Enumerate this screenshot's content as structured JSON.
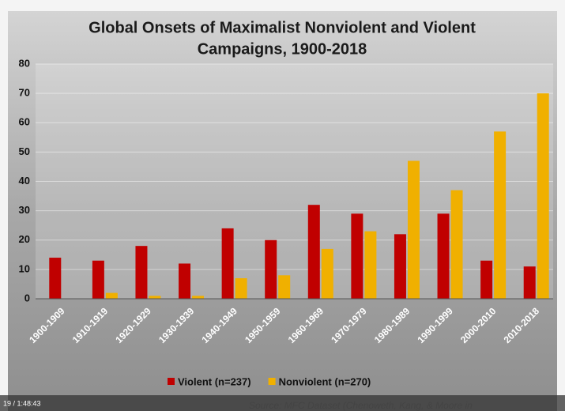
{
  "chart_data": {
    "type": "bar",
    "title": [
      "Global Onsets of Maximalist Nonviolent and Violent",
      "Campaigns, 1900-2018"
    ],
    "categories": [
      "1900-1909",
      "1910-1919",
      "1920-1929",
      "1930-1939",
      "1940-1949",
      "1950-1959",
      "1960-1969",
      "1970-1979",
      "1980-1989",
      "1990-1999",
      "2000-2010",
      "2010-2018"
    ],
    "series": [
      {
        "name": "Violent (n=237)",
        "color": "#c00000",
        "values": [
          14,
          13,
          18,
          12,
          24,
          20,
          32,
          29,
          22,
          29,
          13,
          11
        ]
      },
      {
        "name": "Nonviolent (n=270)",
        "color": "#f0b000",
        "values": [
          0,
          2,
          1,
          1,
          7,
          8,
          17,
          23,
          47,
          37,
          57,
          70
        ]
      }
    ],
    "ylim": [
      0,
      80
    ],
    "yticks": [
      0,
      10,
      20,
      30,
      40,
      50,
      60,
      70,
      80
    ],
    "grid": true,
    "source": "Source: MFC Dataset (Chenoweth, Kang, & Moore in",
    "video_time": "19 / 1:48:43"
  }
}
